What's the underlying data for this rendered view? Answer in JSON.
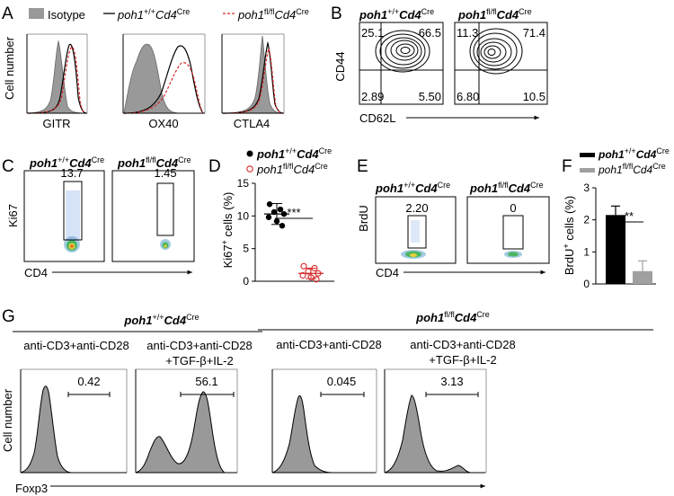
{
  "panels": {
    "A": {
      "letter": "A",
      "legend": {
        "isotype": "Isotype",
        "wt": {
          "gene": "poh1",
          "geno": "+/+",
          "cd4": "Cd4",
          "cre": "Cre"
        },
        "ko": {
          "gene": "poh1",
          "geno": "fl/fl",
          "cd4": "Cd4",
          "cre": "Cre"
        }
      },
      "y_label": "Cell number",
      "markers": [
        "GITR",
        "OX40",
        "CTLA4"
      ]
    },
    "B": {
      "letter": "B",
      "y_label": "CD44",
      "x_label": "CD62L",
      "plots": [
        {
          "gene": "poh1",
          "geno": "+/+",
          "cd4": "Cd4",
          "cre": "Cre",
          "q_tl": "25.1",
          "q_tr": "66.5",
          "q_bl": "2.89",
          "q_br": "5.50"
        },
        {
          "gene": "poh1",
          "geno": "fl/fl",
          "cd4": "Cd4",
          "cre": "Cre",
          "q_tl": "11.3",
          "q_tr": "71.4",
          "q_bl": "6.80",
          "q_br": "10.5"
        }
      ]
    },
    "C": {
      "letter": "C",
      "y_label": "Ki67",
      "x_label": "CD4",
      "plots": [
        {
          "gene": "poh1",
          "geno": "+/+",
          "cd4": "Cd4",
          "cre": "Cre",
          "value": "13.7"
        },
        {
          "gene": "poh1",
          "geno": "fl/fl",
          "cd4": "Cd4",
          "cre": "Cre",
          "value": "1.45"
        }
      ]
    },
    "D": {
      "letter": "D",
      "legend_wt": {
        "gene": "poh1",
        "geno": "+/+",
        "cd4": "Cd4",
        "cre": "Cre"
      },
      "legend_ko": {
        "gene": "poh1",
        "geno": "fl/fl",
        "cd4": "Cd4",
        "cre": "Cre"
      },
      "y_label_main": "Ki67",
      "y_label_sup": "+",
      "y_label_rest": " cells (%)",
      "significance": "***",
      "yticks": [
        "0",
        "5",
        "10",
        "15"
      ]
    },
    "E": {
      "letter": "E",
      "y_label": "BrdU",
      "x_label": "CD4",
      "plots": [
        {
          "gene": "poh1",
          "geno": "+/+",
          "cd4": "Cd4",
          "cre": "Cre",
          "value": "2.20"
        },
        {
          "gene": "poh1",
          "geno": "fl/fl",
          "cd4": "Cd4",
          "cre": "Cre",
          "value": "0"
        }
      ]
    },
    "F": {
      "letter": "F",
      "legend_wt": {
        "gene": "poh1",
        "geno": "+/+",
        "cd4": "Cd4",
        "cre": "Cre"
      },
      "legend_ko": {
        "gene": "poh1",
        "geno": "fl/fl",
        "cd4": "Cd4",
        "cre": "Cre"
      },
      "y_label_main": "BrdU",
      "y_label_sup": "+",
      "y_label_rest": " cells (%)",
      "significance": "**",
      "yticks": [
        "0",
        "1",
        "2",
        "3"
      ]
    },
    "G": {
      "letter": "G",
      "y_label": "Cell number",
      "x_label": "Foxp3",
      "groups": [
        {
          "gene": "poh1",
          "geno": "+/+",
          "cd4": "Cd4",
          "cre": "Cre"
        },
        {
          "gene": "poh1",
          "geno": "fl/fl",
          "cd4": "Cd4",
          "cre": "Cre"
        }
      ],
      "conditions": [
        {
          "line1": "anti-CD3+anti-CD28",
          "line2": "",
          "value": "0.42"
        },
        {
          "line1": "anti-CD3+anti-CD28",
          "line2": "+TGF-β+IL-2",
          "value": "56.1"
        },
        {
          "line1": "anti-CD3+anti-CD28",
          "line2": "",
          "value": "0.045"
        },
        {
          "line1": "anti-CD3+anti-CD28",
          "line2": "+TGF-β+IL-2",
          "value": "3.13"
        }
      ]
    }
  },
  "chart_data": [
    {
      "type": "scatter",
      "title": "Ki67+ cells (%)",
      "ylabel": "Ki67+ cells (%)",
      "ylim": [
        0,
        15
      ],
      "yticks": [
        0,
        5,
        10,
        15
      ],
      "series": [
        {
          "name": "poh1+/+ Cd4Cre",
          "values": [
            11.8,
            11.0,
            10.6,
            10.3,
            9.8,
            9.2,
            8.5
          ],
          "mean": 10.3,
          "sd": 1.6,
          "color": "#000000"
        },
        {
          "name": "poh1fl/fl Cd4Cre",
          "values": [
            2.3,
            2.0,
            1.5,
            1.2,
            0.9,
            0.6,
            0.3
          ],
          "mean": 1.2,
          "sd": 0.8,
          "color": "#d62728"
        }
      ],
      "significance": "***"
    },
    {
      "type": "bar",
      "title": "BrdU+ cells (%)",
      "ylabel": "BrdU+ cells (%)",
      "ylim": [
        0,
        3
      ],
      "yticks": [
        0,
        1,
        2,
        3
      ],
      "categories": [
        "poh1+/+ Cd4Cre",
        "poh1fl/fl Cd4Cre"
      ],
      "values": [
        2.15,
        0.4
      ],
      "errors": [
        0.28,
        0.32
      ],
      "colors": [
        "#000000",
        "#a0a0a0"
      ],
      "significance": "**"
    }
  ],
  "colors": {
    "isotype_fill": "#999999",
    "ko_line": "#d62728",
    "bar_ko": "#a0a0a0",
    "flow_hot": "#1a4fc4"
  }
}
